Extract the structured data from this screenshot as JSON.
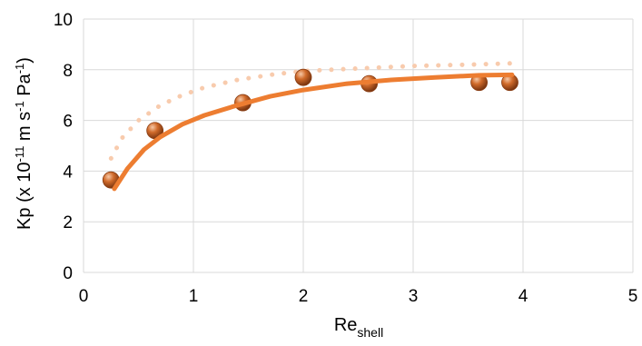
{
  "chart_data": {
    "type": "scatter",
    "title": "",
    "xlabel": {
      "main": "Re",
      "sub": "shell"
    },
    "ylabel": {
      "prefix": "Kp (x 10",
      "exp1": "-11",
      "mid1": " m s",
      "exp2": "-1",
      "mid2": " Pa",
      "exp3": "-1",
      "suffix": ")"
    },
    "xlim": [
      0,
      5
    ],
    "ylim": [
      0,
      10
    ],
    "x_ticks": [
      0,
      1,
      2,
      3,
      4,
      5
    ],
    "y_ticks": [
      0,
      2,
      4,
      6,
      8,
      10
    ],
    "grid": true,
    "series": [
      {
        "kind": "points",
        "color": "#c05a1a",
        "points": [
          [
            0.25,
            3.65
          ],
          [
            0.65,
            5.6
          ],
          [
            1.45,
            6.7
          ],
          [
            2.0,
            7.7
          ],
          [
            2.6,
            7.45
          ],
          [
            3.6,
            7.5
          ],
          [
            3.88,
            7.5
          ]
        ]
      },
      {
        "kind": "solid-curve",
        "color": "#ed7d31",
        "points": [
          [
            0.28,
            3.3
          ],
          [
            0.4,
            4.1
          ],
          [
            0.55,
            4.85
          ],
          [
            0.7,
            5.35
          ],
          [
            0.9,
            5.85
          ],
          [
            1.1,
            6.2
          ],
          [
            1.4,
            6.6
          ],
          [
            1.7,
            6.95
          ],
          [
            2.0,
            7.2
          ],
          [
            2.4,
            7.45
          ],
          [
            2.8,
            7.6
          ],
          [
            3.2,
            7.7
          ],
          [
            3.6,
            7.78
          ],
          [
            3.9,
            7.8
          ]
        ]
      },
      {
        "kind": "dotted-curve",
        "color": "#f8cbad",
        "points": [
          [
            0.25,
            4.5
          ],
          [
            0.35,
            5.3
          ],
          [
            0.5,
            6.0
          ],
          [
            0.7,
            6.6
          ],
          [
            0.9,
            7.0
          ],
          [
            1.1,
            7.3
          ],
          [
            1.4,
            7.6
          ],
          [
            1.7,
            7.8
          ],
          [
            2.0,
            7.95
          ],
          [
            2.5,
            8.05
          ],
          [
            3.0,
            8.15
          ],
          [
            3.5,
            8.2
          ],
          [
            3.88,
            8.25
          ]
        ]
      }
    ]
  }
}
